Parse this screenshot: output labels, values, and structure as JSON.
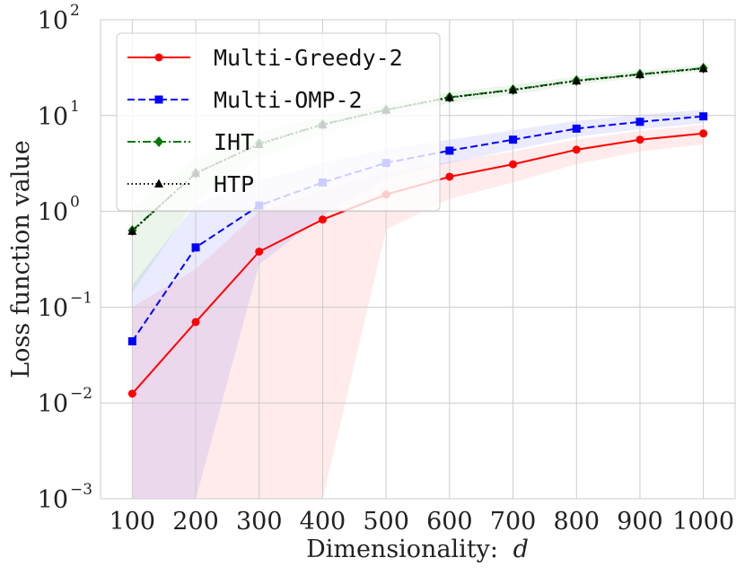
{
  "chart_data": {
    "type": "line",
    "xlabel": "Dimensionality:",
    "xlabel_var": "d",
    "ylabel": "Loss function value",
    "yscale": "log",
    "ylim": [
      0.001,
      100
    ],
    "xlim": [
      50,
      1050
    ],
    "x": [
      100,
      200,
      300,
      400,
      500,
      600,
      700,
      800,
      900,
      1000
    ],
    "x_tick_labels": [
      "100",
      "200",
      "300",
      "400",
      "500",
      "600",
      "700",
      "800",
      "900",
      "1000"
    ],
    "y_ticks": [
      {
        "value": 0.001,
        "base": "10",
        "exp": "−3"
      },
      {
        "value": 0.01,
        "base": "10",
        "exp": "−2"
      },
      {
        "value": 0.1,
        "base": "10",
        "exp": "−1"
      },
      {
        "value": 1,
        "base": "10",
        "exp": "0"
      },
      {
        "value": 10,
        "base": "10",
        "exp": "1"
      },
      {
        "value": 100,
        "base": "10",
        "exp": "2"
      }
    ],
    "grid": true,
    "legend_position": "top-left",
    "series": [
      {
        "name": "Multi-Greedy-2",
        "color": "#ff0000",
        "dash": "solid",
        "marker": "circle",
        "values": [
          0.0125,
          0.07,
          0.38,
          0.82,
          1.5,
          2.3,
          3.1,
          4.4,
          5.6,
          6.5
        ],
        "band_lower": [
          0.001,
          0.001,
          0.001,
          0.001,
          0.65,
          1.35,
          2.0,
          3.1,
          4.2,
          5.0
        ],
        "band_upper": [
          0.1,
          0.25,
          1.0,
          1.65,
          2.5,
          3.3,
          4.2,
          5.6,
          6.9,
          8.0
        ]
      },
      {
        "name": "Multi-OMP-2",
        "color": "#0000ff",
        "dash": "dashed",
        "marker": "square",
        "values": [
          0.044,
          0.42,
          1.15,
          2.0,
          3.2,
          4.3,
          5.6,
          7.3,
          8.6,
          9.8
        ],
        "band_lower": [
          0.001,
          0.001,
          0.28,
          0.9,
          2.2,
          3.2,
          4.4,
          6.0,
          7.2,
          8.3
        ],
        "band_upper": [
          0.17,
          1.2,
          2.1,
          3.2,
          4.5,
          5.6,
          7.0,
          8.8,
          10.2,
          11.5
        ]
      },
      {
        "name": "IHT",
        "color": "#007a00",
        "dash": "dashdot",
        "marker": "diamond",
        "values": [
          0.63,
          2.5,
          5.1,
          8.1,
          11.5,
          15.5,
          18.6,
          23.2,
          27.0,
          31.2
        ],
        "band_lower": [
          0.14,
          1.3,
          3.6,
          6.5,
          9.8,
          13.5,
          16.5,
          21.0,
          24.6,
          28.8
        ],
        "band_upper": [
          1.1,
          3.6,
          6.7,
          9.8,
          13.3,
          17.6,
          20.8,
          25.5,
          29.5,
          33.8
        ]
      },
      {
        "name": "HTP",
        "color": "#000000",
        "dash": "dotted",
        "marker": "triangle",
        "values": [
          0.62,
          2.5,
          5.0,
          8.0,
          11.4,
          15.4,
          18.5,
          23.0,
          26.8,
          31.0
        ],
        "band_lower": null,
        "band_upper": null
      }
    ]
  }
}
